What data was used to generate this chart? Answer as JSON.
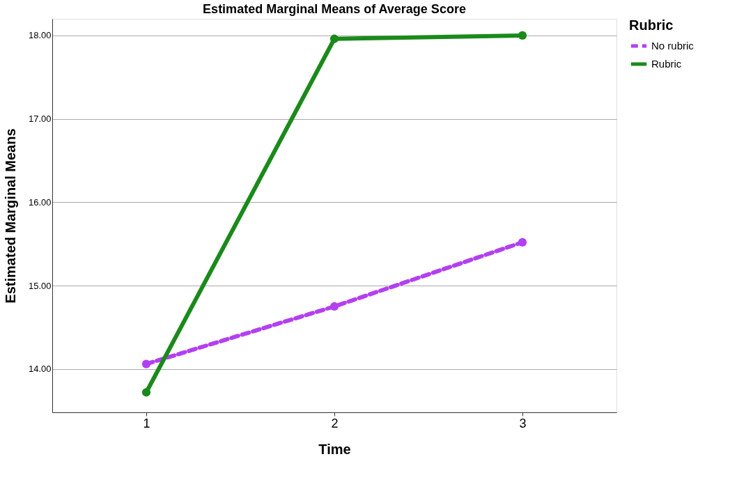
{
  "chart_data": {
    "type": "line",
    "title": "Estimated Marginal Means of Average Score",
    "xlabel": "Time",
    "ylabel": "Estimated Marginal Means",
    "legend_title": "Rubric",
    "categories": [
      "1",
      "2",
      "3"
    ],
    "series": [
      {
        "name": "No rubric",
        "color": "#b340f0",
        "values": [
          14.06,
          14.75,
          15.52
        ],
        "line_style": "dashed"
      },
      {
        "name": "Rubric",
        "color": "#1a8a1a",
        "values": [
          13.72,
          17.96,
          18.0
        ],
        "line_style": "solid"
      }
    ],
    "ylim": [
      13.48,
      18.2
    ],
    "yticks": [
      {
        "value": 14,
        "label": "14.00"
      },
      {
        "value": 15,
        "label": "15.00"
      },
      {
        "value": 16,
        "label": "16.00"
      },
      {
        "value": 17,
        "label": "17.00"
      },
      {
        "value": 18,
        "label": "18.00"
      }
    ],
    "grid": "y",
    "legend": "top right",
    "marker": "circle"
  }
}
